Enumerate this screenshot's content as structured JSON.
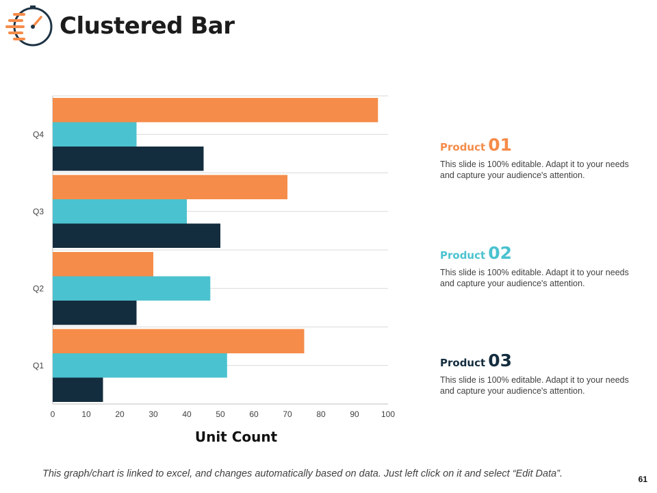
{
  "slide": {
    "title": "Clustered Bar",
    "page_number": "61",
    "footnote": "This graph/chart is linked to excel, and changes automatically based on data. Just left click on it and select “Edit Data”."
  },
  "colors": {
    "product_01": "#F58C49",
    "product_02": "#4BC2CF",
    "product_03": "#142D3E",
    "icon": "#F58C49",
    "icon_ring": "#1E3344"
  },
  "icons": {
    "title": "stopwatch-speed-icon"
  },
  "products": [
    {
      "word": "Product",
      "number": "01",
      "description": "This slide is 100% editable. Adapt it to your needs and capture your audience's attention."
    },
    {
      "word": "Product",
      "number": "02",
      "description": "This slide is 100% editable. Adapt it to your needs and capture your audience's attention."
    },
    {
      "word": "Product",
      "number": "03",
      "description": "This slide is 100% editable. Adapt it to your needs and capture your audience's attention."
    }
  ],
  "chart_data": {
    "type": "bar",
    "orientation": "horizontal",
    "title": "",
    "xlabel": "Unit Count",
    "ylabel": "",
    "categories": [
      "Q1",
      "Q2",
      "Q3",
      "Q4"
    ],
    "series": [
      {
        "name": "Product 01",
        "values": [
          75,
          30,
          70,
          97
        ]
      },
      {
        "name": "Product 02",
        "values": [
          52,
          47,
          40,
          25
        ]
      },
      {
        "name": "Product 03",
        "values": [
          15,
          25,
          50,
          45
        ]
      }
    ],
    "xlim": [
      0,
      100
    ],
    "xticks": [
      0,
      10,
      20,
      30,
      40,
      50,
      60,
      70,
      80,
      90,
      100
    ],
    "grid": true,
    "legend": "none"
  }
}
